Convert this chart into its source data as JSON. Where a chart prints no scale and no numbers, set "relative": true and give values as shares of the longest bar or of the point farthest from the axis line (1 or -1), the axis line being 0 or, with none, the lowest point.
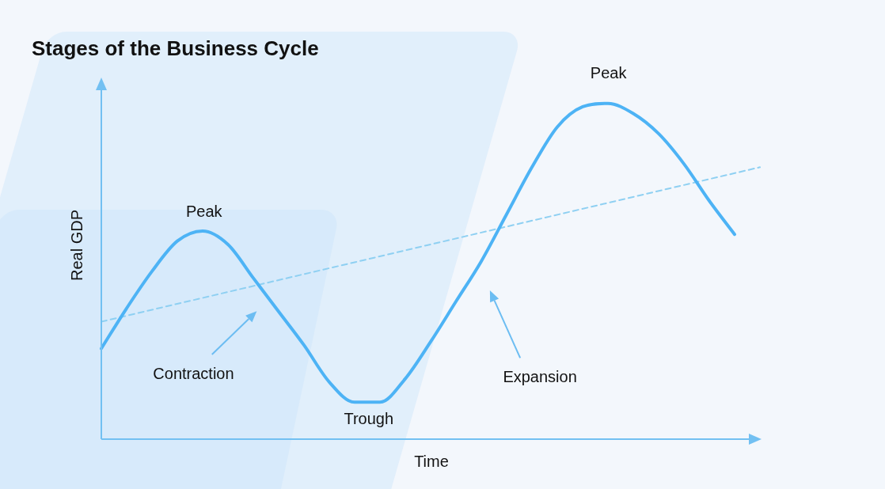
{
  "chart_data": {
    "type": "line",
    "title": "Stages of the Business Cycle",
    "xlabel": "Time",
    "ylabel": "Real GDP",
    "relative": true,
    "categories": [
      null,
      null,
      null,
      null,
      null,
      null,
      null,
      null,
      null,
      null,
      null,
      null,
      null,
      null,
      null,
      null,
      null,
      null,
      null,
      null,
      null,
      null,
      null,
      null,
      null,
      null,
      null
    ],
    "series": [
      {
        "color": "#4db3f5",
        "line_style": "solid",
        "values": [
          0.27,
          0.39,
          0.5,
          0.59,
          0.62,
          0.58,
          0.48,
          0.38,
          0.28,
          0.17,
          0.11,
          0.11,
          0.18,
          0.29,
          0.41,
          0.53,
          0.67,
          0.81,
          0.93,
          0.99,
          1,
          0.97,
          0.91,
          0.82,
          0.71,
          0.61,
          null
        ]
      },
      {
        "color": "#8fd0f2",
        "line_style": "dashed",
        "values": [
          0.35,
          null,
          null,
          null,
          null,
          null,
          null,
          null,
          null,
          null,
          null,
          null,
          null,
          null,
          null,
          null,
          null,
          null,
          null,
          null,
          null,
          null,
          null,
          null,
          null,
          null,
          0.81
        ]
      }
    ],
    "annotations": [
      "Peak",
      "Peak",
      "Contraction",
      "Trough",
      "Expansion"
    ],
    "legend": false,
    "marker": "none"
  }
}
